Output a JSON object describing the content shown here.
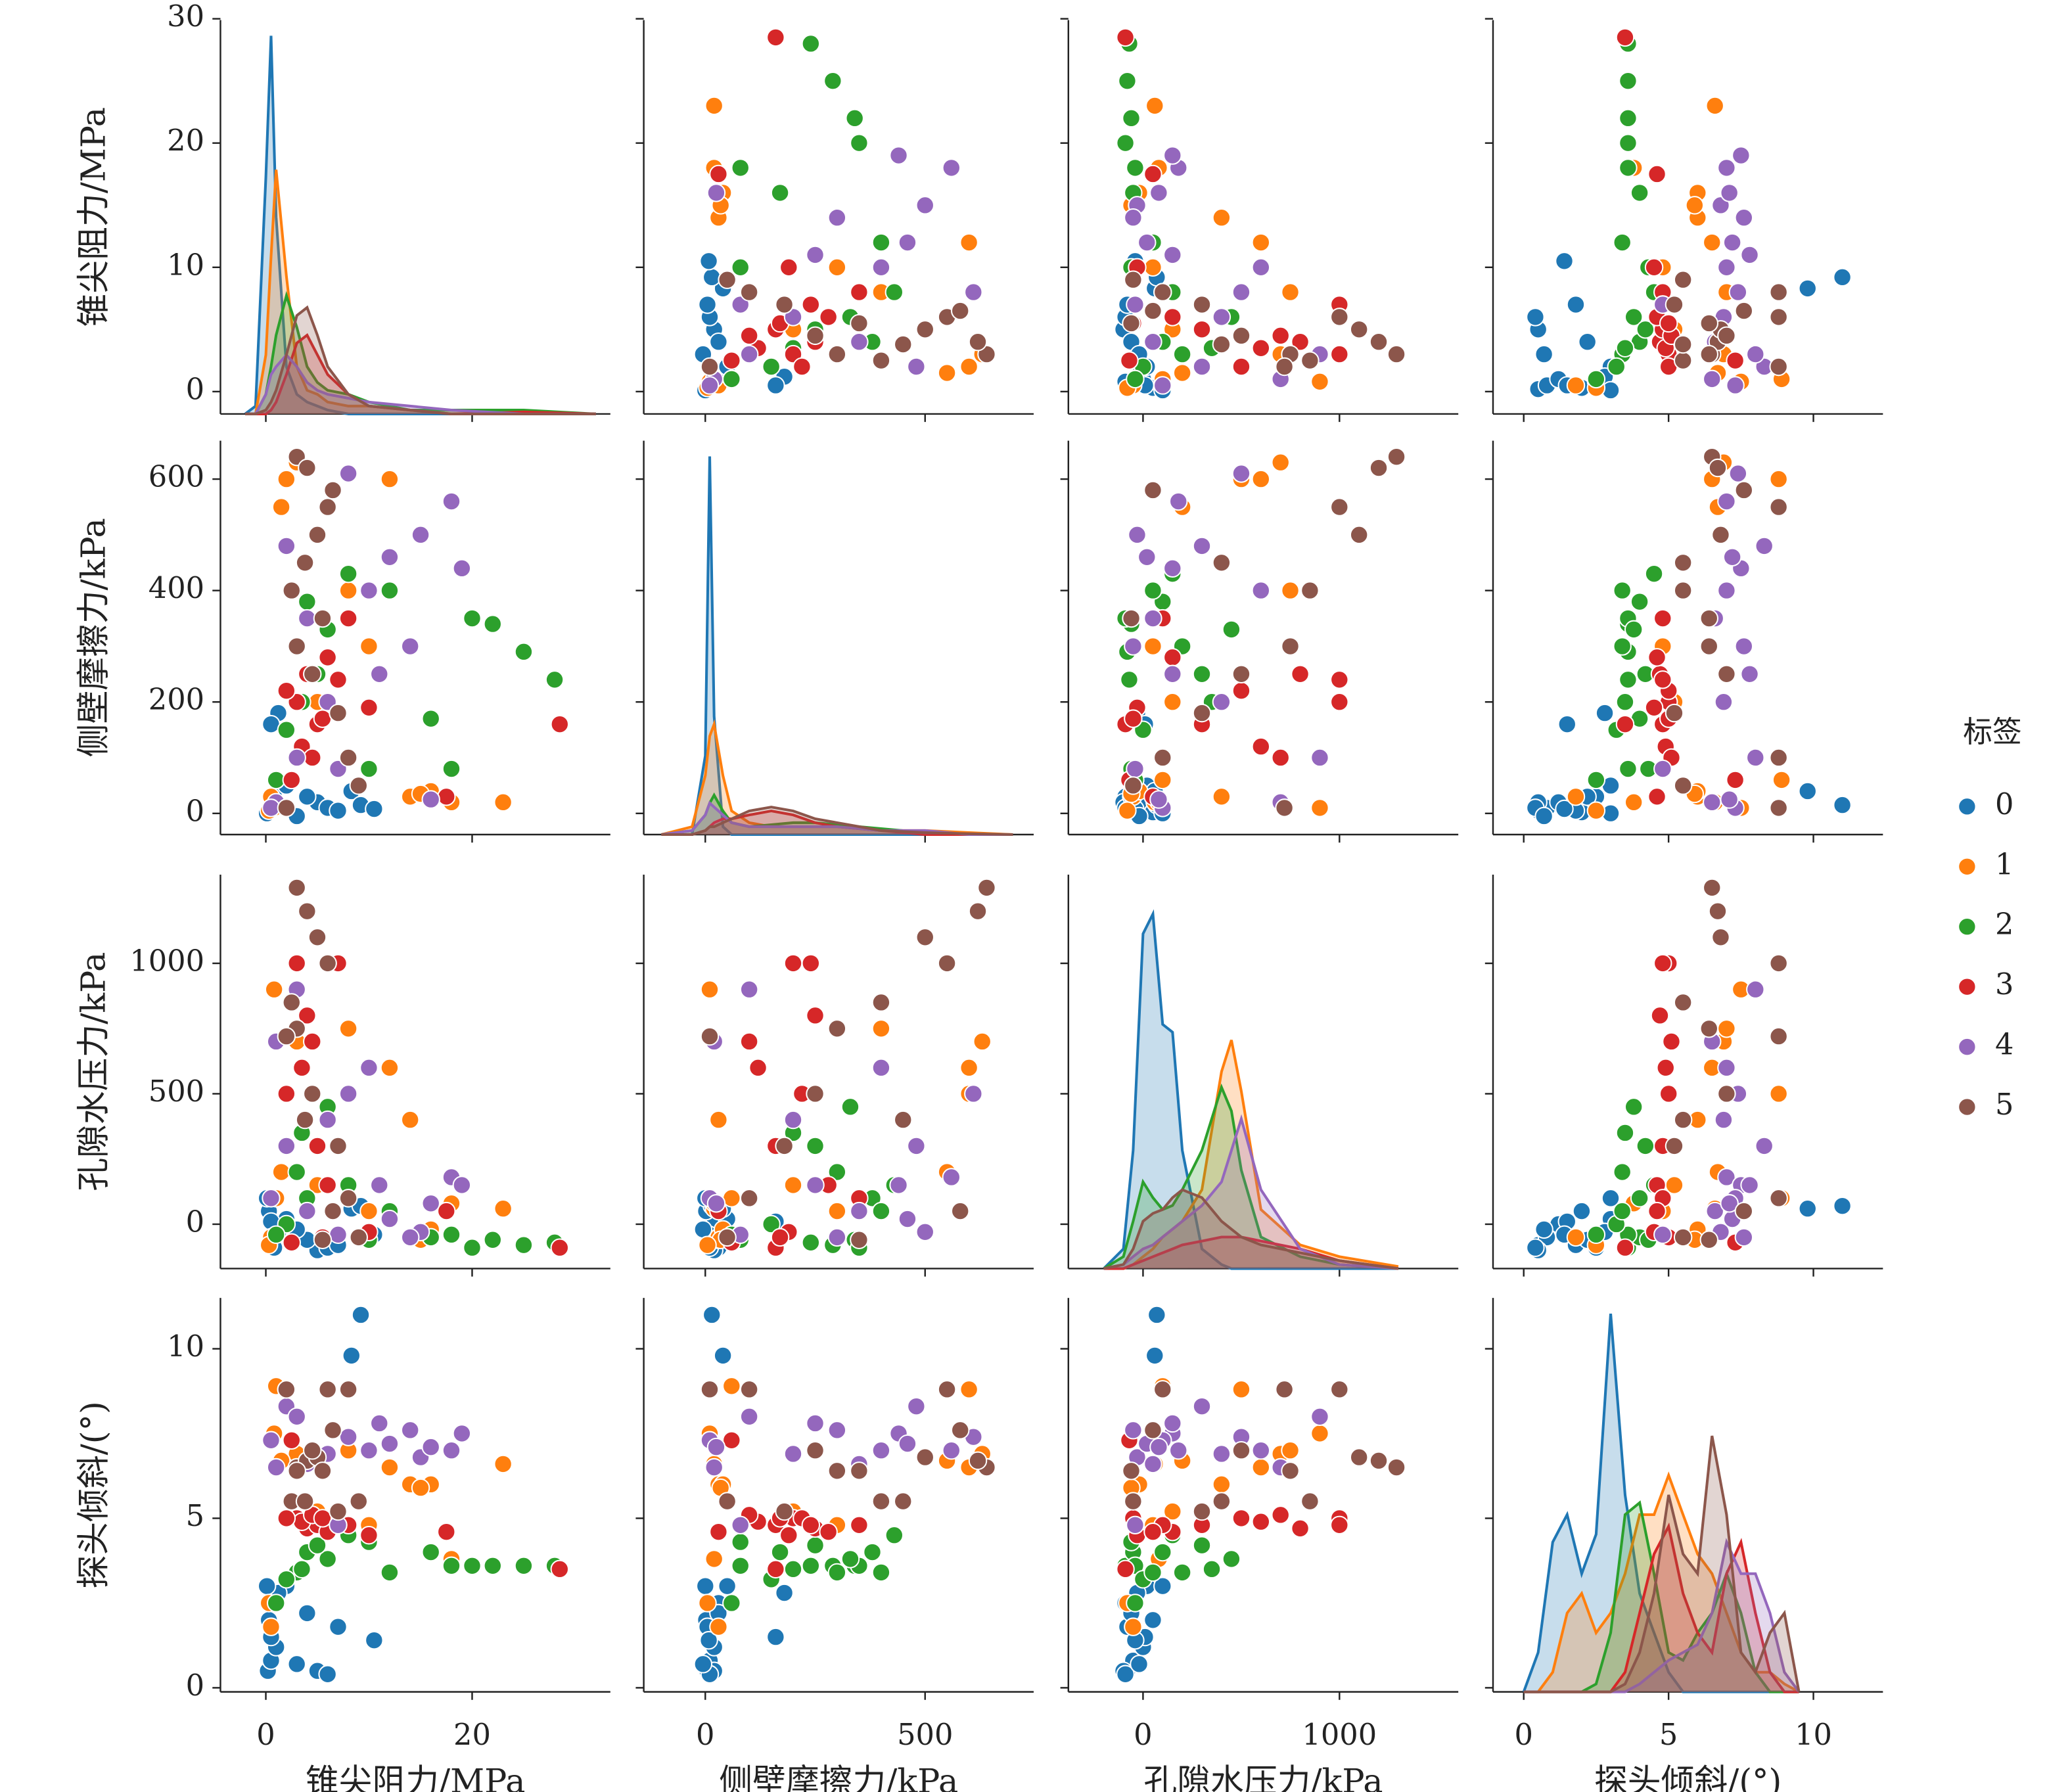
{
  "chart_data": {
    "type": "pairplot",
    "legend_title": "标签",
    "density_lim": [
      0,
      1
    ],
    "variables": [
      {
        "label": "锥尖阻力/MPa",
        "xlim": [
          -4.4,
          33.4
        ],
        "xticks": [
          0,
          20
        ],
        "ylim": [
          -1.8,
          29.9
        ],
        "yticks": [
          0,
          10,
          20,
          30
        ],
        "kde_x": [
          -2,
          -1,
          0,
          0.5,
          1,
          2,
          3,
          4,
          5,
          6,
          8,
          10,
          14,
          18,
          25,
          32
        ]
      },
      {
        "label": "侧壁摩擦力/kPa",
        "xlim": [
          -140,
          747
        ],
        "xticks": [
          0,
          500
        ],
        "ylim": [
          -38,
          669
        ],
        "yticks": [
          0,
          200,
          400,
          600
        ],
        "kde_x": [
          -100,
          -30,
          0,
          10,
          20,
          40,
          60,
          100,
          150,
          200,
          250,
          300,
          400,
          500,
          600,
          700
        ]
      },
      {
        "label": "孔隙水压力/kPa",
        "xlim": [
          -380,
          1605
        ],
        "xticks": [
          0,
          1000
        ],
        "ylim": [
          -170,
          1340
        ],
        "yticks": [
          0,
          500,
          1000
        ],
        "kde_x": [
          -200,
          -100,
          -50,
          0,
          50,
          100,
          150,
          200,
          300,
          400,
          450,
          500,
          600,
          800,
          1000,
          1300
        ]
      },
      {
        "label": "探头倾斜/(°)",
        "xlim": [
          -1.06,
          12.4
        ],
        "xticks": [
          0,
          5,
          10
        ],
        "ylim": [
          -0.12,
          11.5
        ],
        "yticks": [
          0,
          5,
          10
        ],
        "kde_x": [
          0,
          0.5,
          1,
          1.5,
          2,
          2.5,
          3,
          3.5,
          4,
          4.5,
          5,
          5.5,
          6,
          6.5,
          7,
          7.5,
          8,
          8.5,
          9,
          9.5
        ]
      }
    ],
    "series": [
      {
        "name": "0",
        "color": "#1f77b4",
        "points": [
          [
            0.2,
            5,
            -80,
            0.5
          ],
          [
            0.5,
            10,
            -50,
            0.8
          ],
          [
            1,
            20,
            0,
            1.2
          ],
          [
            0.3,
            2,
            50,
            2
          ],
          [
            0.8,
            30,
            -90,
            2.5
          ],
          [
            2,
            50,
            20,
            3
          ],
          [
            1.2,
            180,
            -30,
            2.8
          ],
          [
            0.5,
            160,
            10,
            1.5
          ],
          [
            5,
            20,
            -100,
            0.5
          ],
          [
            6,
            10,
            -90,
            0.4
          ],
          [
            7,
            5,
            -80,
            1.8
          ],
          [
            4,
            30,
            -60,
            2.2
          ],
          [
            8.3,
            40,
            60,
            9.8
          ],
          [
            9.2,
            15,
            70,
            11
          ],
          [
            10.5,
            8,
            -40,
            1.4
          ],
          [
            0.1,
            0,
            100,
            3
          ],
          [
            3,
            -5,
            -20,
            0.7
          ]
        ],
        "kde": [
          [
            0,
            0.02,
            0.6,
            0.96,
            0.5,
            0.12,
            0.05,
            0.03,
            0.02,
            0.01,
            0,
            0,
            0,
            0,
            0,
            0
          ],
          [
            0,
            0,
            0.2,
            0.96,
            0.3,
            0.02,
            0,
            0,
            0,
            0,
            0,
            0,
            0,
            0,
            0,
            0
          ],
          [
            0,
            0.05,
            0.3,
            0.85,
            0.9,
            0.62,
            0.6,
            0.3,
            0.05,
            0.01,
            0,
            0,
            0,
            0,
            0,
            0
          ],
          [
            0,
            0.1,
            0.38,
            0.45,
            0.3,
            0.4,
            0.96,
            0.5,
            0.25,
            0.15,
            0.05,
            0,
            0,
            0,
            0,
            0,
            0,
            0,
            0,
            0
          ]
        ]
      },
      {
        "name": "1",
        "color": "#ff7f0e",
        "points": [
          [
            0.5,
            30,
            -50,
            1.8
          ],
          [
            1,
            60,
            100,
            8.9
          ],
          [
            2,
            600,
            500,
            8.8
          ],
          [
            3,
            630,
            700,
            6.9
          ],
          [
            12,
            600,
            600,
            6.5
          ],
          [
            14,
            30,
            400,
            6
          ],
          [
            16,
            40,
            -20,
            6
          ],
          [
            23,
            20,
            60,
            6.6
          ],
          [
            18,
            20,
            80,
            3.8
          ],
          [
            1.5,
            550,
            200,
            6.7
          ],
          [
            0.8,
            10,
            900,
            7.5
          ],
          [
            5,
            200,
            150,
            5.2
          ],
          [
            10,
            300,
            50,
            4.8
          ],
          [
            15,
            35,
            -60,
            5.9
          ],
          [
            0.3,
            5,
            -80,
            2.5
          ],
          [
            8,
            400,
            750,
            7
          ]
        ],
        "kde": [
          [
            0,
            0,
            0.15,
            0.4,
            0.62,
            0.35,
            0.12,
            0.06,
            0.05,
            0.03,
            0.02,
            0.02,
            0.01,
            0.01,
            0,
            0
          ],
          [
            0,
            0.02,
            0.15,
            0.25,
            0.28,
            0.15,
            0.06,
            0.03,
            0.02,
            0.02,
            0.02,
            0.02,
            0.01,
            0.01,
            0.005,
            0
          ],
          [
            0,
            0,
            0.01,
            0.03,
            0.05,
            0.08,
            0.1,
            0.12,
            0.2,
            0.5,
            0.58,
            0.45,
            0.15,
            0.06,
            0.03,
            0.005
          ],
          [
            0,
            0,
            0.05,
            0.2,
            0.25,
            0.15,
            0.2,
            0.3,
            0.45,
            0.45,
            0.55,
            0.45,
            0.35,
            0.3,
            0.2,
            0.1,
            0.05,
            0.05,
            0.02,
            0
          ]
        ]
      },
      {
        "name": "2",
        "color": "#2ca02c",
        "points": [
          [
            22,
            340,
            -60,
            3.6
          ],
          [
            25,
            290,
            -80,
            3.6
          ],
          [
            28,
            240,
            -70,
            3.6
          ],
          [
            20,
            350,
            -90,
            3.6
          ],
          [
            16,
            170,
            -50,
            4
          ],
          [
            18,
            80,
            -40,
            3.6
          ],
          [
            10,
            80,
            -60,
            4.3
          ],
          [
            3,
            300,
            200,
            3.4
          ],
          [
            2,
            150,
            0,
            3.2
          ],
          [
            4,
            380,
            100,
            4
          ],
          [
            6,
            330,
            450,
            3.8
          ],
          [
            5,
            250,
            300,
            4.2
          ],
          [
            1,
            60,
            -40,
            2.5
          ],
          [
            8,
            430,
            150,
            4.5
          ],
          [
            3.5,
            200,
            350,
            3.5
          ],
          [
            12,
            400,
            50,
            3.4
          ]
        ],
        "kde": [
          [
            0,
            0,
            0.05,
            0.12,
            0.2,
            0.3,
            0.22,
            0.12,
            0.08,
            0.06,
            0.05,
            0.03,
            0.01,
            0.01,
            0.01,
            0
          ],
          [
            0,
            0.01,
            0.05,
            0.08,
            0.1,
            0.06,
            0.03,
            0.02,
            0.025,
            0.03,
            0.03,
            0.025,
            0.015,
            0.005,
            0,
            0
          ],
          [
            0,
            0.03,
            0.12,
            0.22,
            0.18,
            0.15,
            0.16,
            0.2,
            0.3,
            0.46,
            0.4,
            0.25,
            0.08,
            0.03,
            0.01,
            0
          ],
          [
            0,
            0,
            0,
            0,
            0,
            0.02,
            0.15,
            0.45,
            0.48,
            0.3,
            0.1,
            0.08,
            0.15,
            0.2,
            0.3,
            0.2,
            0.05,
            0,
            0,
            0
          ]
        ]
      },
      {
        "name": "3",
        "color": "#d62728",
        "points": [
          [
            28.5,
            160,
            -90,
            3.5
          ],
          [
            3,
            200,
            1000,
            5
          ],
          [
            4,
            250,
            800,
            4.7
          ],
          [
            5,
            160,
            300,
            4.8
          ],
          [
            3.5,
            120,
            600,
            4.9
          ],
          [
            6,
            280,
            150,
            4.6
          ],
          [
            2,
            220,
            500,
            5
          ],
          [
            8,
            350,
            100,
            4.8
          ],
          [
            10,
            190,
            -30,
            4.5
          ],
          [
            4.5,
            100,
            700,
            5.1
          ],
          [
            17.5,
            30,
            50,
            4.6
          ],
          [
            2.5,
            60,
            -70,
            7.3
          ],
          [
            7,
            240,
            1000,
            4.8
          ],
          [
            5.5,
            170,
            -50,
            5
          ]
        ],
        "kde": [
          [
            0,
            0,
            0,
            0.01,
            0.03,
            0.1,
            0.18,
            0.2,
            0.15,
            0.1,
            0.05,
            0.02,
            0.01,
            0,
            0.005,
            0
          ],
          [
            0,
            0,
            0.01,
            0.02,
            0.03,
            0.04,
            0.04,
            0.05,
            0.06,
            0.05,
            0.03,
            0.02,
            0.01,
            0,
            0,
            0
          ],
          [
            0,
            0,
            0.01,
            0.02,
            0.03,
            0.04,
            0.05,
            0.06,
            0.07,
            0.08,
            0.08,
            0.08,
            0.07,
            0.05,
            0.02,
            0
          ],
          [
            0,
            0,
            0,
            0,
            0,
            0,
            0,
            0.05,
            0.2,
            0.35,
            0.42,
            0.25,
            0.15,
            0.1,
            0.3,
            0.38,
            0.2,
            0.05,
            0,
            0
          ]
        ]
      },
      {
        "name": "4",
        "color": "#9467bd",
        "points": [
          [
            18,
            560,
            180,
            7
          ],
          [
            19,
            440,
            150,
            7.5
          ],
          [
            15,
            500,
            -30,
            6.8
          ],
          [
            14,
            300,
            -50,
            7.6
          ],
          [
            12,
            460,
            20,
            7.2
          ],
          [
            8,
            610,
            500,
            7.4
          ],
          [
            10,
            400,
            600,
            7
          ],
          [
            2,
            480,
            300,
            8.3
          ],
          [
            1,
            20,
            700,
            6.5
          ],
          [
            3,
            100,
            900,
            8
          ],
          [
            6,
            200,
            400,
            6.9
          ],
          [
            0.5,
            10,
            100,
            7.3
          ],
          [
            4,
            350,
            50,
            6.6
          ],
          [
            11,
            250,
            150,
            7.8
          ],
          [
            16,
            25,
            80,
            7.1
          ],
          [
            7,
            80,
            -40,
            4.8
          ]
        ],
        "kde": [
          [
            0,
            0,
            0.05,
            0.1,
            0.12,
            0.15,
            0.12,
            0.08,
            0.06,
            0.05,
            0.04,
            0.03,
            0.02,
            0.01,
            0,
            0
          ],
          [
            0,
            0.01,
            0.05,
            0.08,
            0.07,
            0.05,
            0.03,
            0.02,
            0.02,
            0.02,
            0.02,
            0.02,
            0.01,
            0.01,
            0,
            0
          ],
          [
            0,
            0.01,
            0.03,
            0.05,
            0.06,
            0.08,
            0.1,
            0.12,
            0.16,
            0.22,
            0.3,
            0.38,
            0.2,
            0.05,
            0.01,
            0
          ],
          [
            0,
            0,
            0,
            0,
            0,
            0,
            0,
            0,
            0.02,
            0.05,
            0.08,
            0.1,
            0.12,
            0.2,
            0.38,
            0.3,
            0.3,
            0.2,
            0.05,
            0
          ]
        ]
      },
      {
        "name": "5",
        "color": "#8c564b",
        "points": [
          [
            3,
            640,
            1290,
            6.5
          ],
          [
            4,
            620,
            1200,
            6.7
          ],
          [
            5,
            500,
            1100,
            6.8
          ],
          [
            6,
            550,
            1000,
            8.8
          ],
          [
            2.5,
            400,
            850,
            5.5
          ],
          [
            3,
            300,
            750,
            6.4
          ],
          [
            4.5,
            250,
            500,
            7
          ],
          [
            7,
            180,
            300,
            5.2
          ],
          [
            8,
            100,
            100,
            8.8
          ],
          [
            9,
            50,
            -50,
            5.5
          ],
          [
            2,
            10,
            720,
            8.8
          ],
          [
            5.5,
            350,
            -60,
            6.4
          ],
          [
            3.8,
            450,
            400,
            5.5
          ],
          [
            6.5,
            580,
            50,
            7.6
          ]
        ],
        "kde": [
          [
            0,
            0,
            0.01,
            0.03,
            0.06,
            0.15,
            0.25,
            0.27,
            0.2,
            0.12,
            0.05,
            0.02,
            0.01,
            0,
            0,
            0
          ],
          [
            0,
            0,
            0.01,
            0.02,
            0.02,
            0.03,
            0.04,
            0.06,
            0.07,
            0.06,
            0.04,
            0.03,
            0.01,
            0.005,
            0.002,
            0
          ],
          [
            0,
            0.01,
            0.05,
            0.12,
            0.14,
            0.15,
            0.18,
            0.2,
            0.18,
            0.12,
            0.1,
            0.08,
            0.06,
            0.04,
            0.02,
            0
          ],
          [
            0,
            0,
            0,
            0,
            0,
            0,
            0,
            0.02,
            0.1,
            0.25,
            0.5,
            0.35,
            0.3,
            0.65,
            0.45,
            0.1,
            0.05,
            0.15,
            0.2,
            0
          ]
        ]
      }
    ]
  }
}
